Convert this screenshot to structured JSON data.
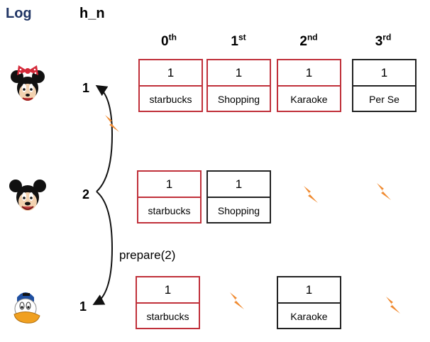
{
  "headers": {
    "log": "Log",
    "h_n": "h_n"
  },
  "columns": [
    {
      "num": "0",
      "suffix": "th"
    },
    {
      "num": "1",
      "suffix": "st"
    },
    {
      "num": "2",
      "suffix": "nd"
    },
    {
      "num": "3",
      "suffix": "rd"
    }
  ],
  "rows": [
    {
      "character": "minnie-mouse",
      "h_n": "1",
      "cells": [
        {
          "value": "1",
          "label": "starbucks",
          "border": "red"
        },
        {
          "value": "1",
          "label": "Shopping",
          "border": "red"
        },
        {
          "value": "1",
          "label": "Karaoke",
          "border": "red"
        },
        {
          "value": "1",
          "label": "Per Se",
          "border": "black"
        }
      ]
    },
    {
      "character": "mickey-mouse",
      "h_n": "2",
      "cells": [
        {
          "value": "1",
          "label": "starbucks",
          "border": "red"
        },
        {
          "value": "1",
          "label": "Shopping",
          "border": "black"
        }
      ]
    },
    {
      "character": "donald-duck",
      "h_n": "1",
      "cells": [
        {
          "value": "1",
          "label": "starbucks",
          "border": "red"
        },
        {
          "value": "1",
          "label": "Karaoke",
          "border": "black"
        }
      ]
    }
  ],
  "arrow_label": "prepare(2)",
  "colors": {
    "red": "#c0303a",
    "black": "#222222",
    "lightning": "#f08a30",
    "title": "#1f3464"
  },
  "icons": [
    "minnie-face-icon",
    "mickey-face-icon",
    "donald-face-icon",
    "lightning-icon"
  ]
}
